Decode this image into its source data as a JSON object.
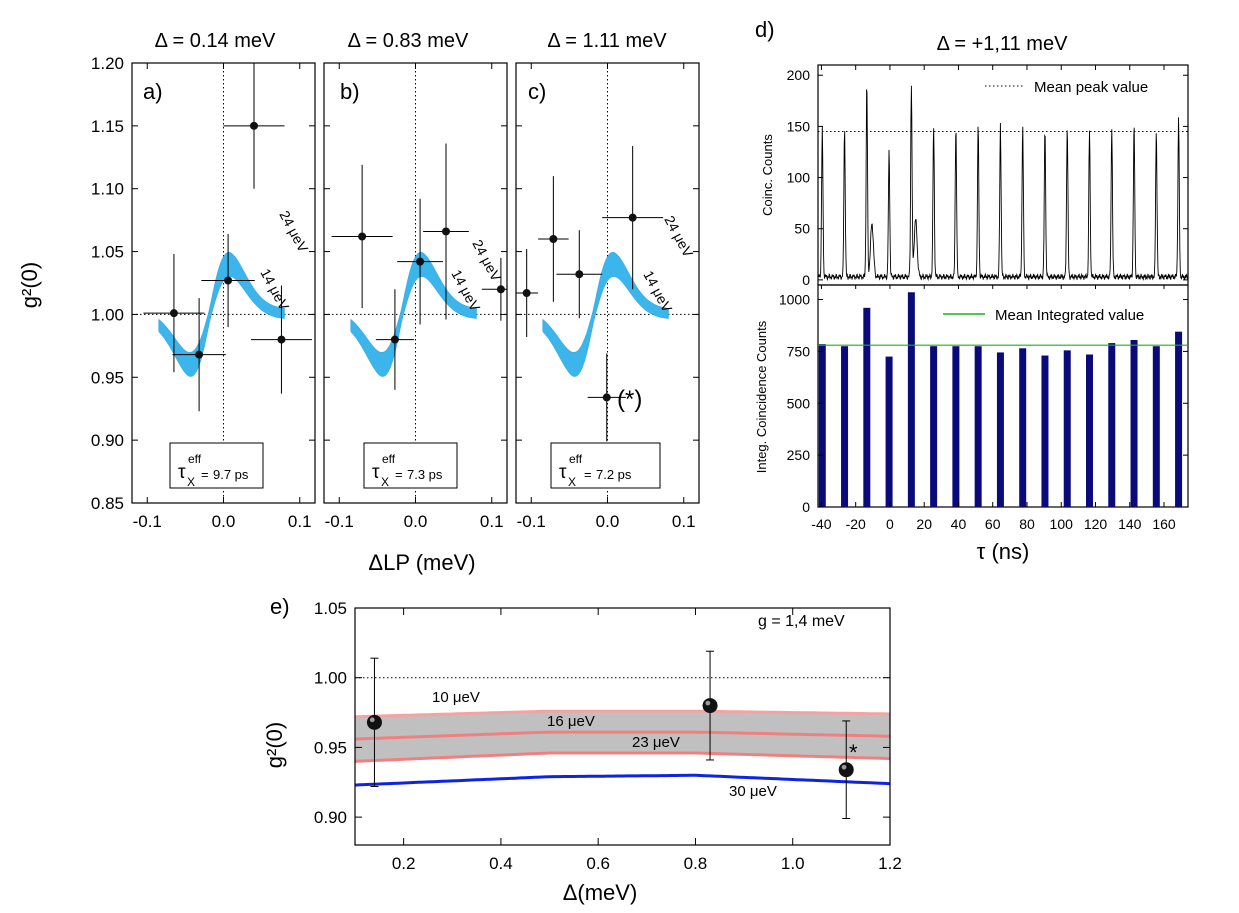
{
  "panels_abc": {
    "ylabel": "g²(0)",
    "xlabel": "ΔLP (meV)",
    "yticks": [
      "0.85",
      "0.90",
      "0.95",
      "1.00",
      "1.05",
      "1.10",
      "1.15",
      "1.20"
    ],
    "xticks": [
      "-0.1",
      "0.0",
      "0.1"
    ],
    "panels": [
      {
        "letter": "a)",
        "title": "Δ = 0.14 meV",
        "tau": "9.7 ps",
        "band_top": "24 μeV",
        "band_bottom": "14 μeV"
      },
      {
        "letter": "b)",
        "title": "Δ = 0.83 meV",
        "tau": "7.3 ps",
        "band_top": "24 μeV",
        "band_bottom": "14 μeV"
      },
      {
        "letter": "c)",
        "title": "Δ = 1.11 meV",
        "tau": "7.2 ps",
        "band_top": "24 μeV",
        "band_bottom": "14 μeV",
        "mark": "(*)"
      }
    ]
  },
  "panel_d": {
    "letter": "d)",
    "title": "Δ = +1,11 meV",
    "top_ylabel": "Coinc. Counts",
    "top_yticks": [
      "0",
      "50",
      "100",
      "150",
      "200"
    ],
    "top_legend": "Mean peak value",
    "bottom_ylabel": "Integ. Coincidence Counts",
    "bottom_yticks": [
      "0",
      "250",
      "500",
      "750",
      "1000"
    ],
    "bottom_legend": "Mean Integrated value",
    "xticks": [
      "-40",
      "-20",
      "0",
      "20",
      "40",
      "60",
      "80",
      "100",
      "120",
      "140",
      "160"
    ],
    "xlabel": "τ (ns)",
    "colors": {
      "bars": "#0a0a7a",
      "mean": "#18b418"
    }
  },
  "panel_e": {
    "letter": "e)",
    "ylabel": "g²(0)",
    "xlabel": "Δ(meV)",
    "annotation": "g = 1,4 meV",
    "yticks": [
      "0.90",
      "0.95",
      "1.00",
      "1.05"
    ],
    "xticks": [
      "0.2",
      "0.4",
      "0.6",
      "0.8",
      "1.0",
      "1.2"
    ],
    "curve_labels": [
      "10 μeV",
      "16 μeV",
      "23 μeV",
      "30 μeV"
    ],
    "star": "*"
  },
  "chart_data": [
    {
      "type": "scatter",
      "panel": "a",
      "title": "Δ = 0.14 meV",
      "xlabel": "ΔLP (meV)",
      "ylabel": "g²(0)",
      "xlim": [
        -0.12,
        0.12
      ],
      "ylim": [
        0.85,
        1.2
      ],
      "points": [
        {
          "x": -0.065,
          "y": 1.001,
          "xerr": 0.04,
          "yerr": 0.047
        },
        {
          "x": -0.032,
          "y": 0.968,
          "xerr": 0.035,
          "yerr": 0.045
        },
        {
          "x": 0.006,
          "y": 1.027,
          "xerr": 0.035,
          "yerr": 0.037
        },
        {
          "x": 0.04,
          "y": 1.15,
          "xerr": 0.04,
          "yerr": 0.05
        },
        {
          "x": 0.076,
          "y": 0.98,
          "xerr": 0.04,
          "yerr": 0.043
        }
      ],
      "band": {
        "offset": -0.018,
        "labels": [
          "24 μeV",
          "14 μeV"
        ]
      }
    },
    {
      "type": "scatter",
      "panel": "b",
      "title": "Δ = 0.83 meV",
      "xlabel": "ΔLP (meV)",
      "ylabel": "g²(0)",
      "xlim": [
        -0.12,
        0.12
      ],
      "ylim": [
        0.85,
        1.2
      ],
      "points": [
        {
          "x": -0.07,
          "y": 1.062,
          "xerr": 0.04,
          "yerr": 0.057
        },
        {
          "x": -0.027,
          "y": 0.98,
          "xerr": 0.025,
          "yerr": 0.04
        },
        {
          "x": 0.006,
          "y": 1.042,
          "xerr": 0.03,
          "yerr": 0.05
        },
        {
          "x": 0.04,
          "y": 1.066,
          "xerr": 0.03,
          "yerr": 0.07
        },
        {
          "x": 0.112,
          "y": 1.02,
          "xerr": 0.025,
          "yerr": 0.025
        }
      ],
      "band": {
        "offset": -0.018,
        "labels": [
          "24 μeV",
          "14 μeV"
        ]
      }
    },
    {
      "type": "scatter",
      "panel": "c",
      "title": "Δ = 1.11 meV",
      "xlabel": "ΔLP (meV)",
      "ylabel": "g²(0)",
      "xlim": [
        -0.12,
        0.12
      ],
      "ylim": [
        0.85,
        1.2
      ],
      "points": [
        {
          "x": -0.106,
          "y": 1.017,
          "xerr": 0.015,
          "yerr": 0.035
        },
        {
          "x": -0.071,
          "y": 1.06,
          "xerr": 0.02,
          "yerr": 0.05
        },
        {
          "x": -0.037,
          "y": 1.032,
          "xerr": 0.03,
          "yerr": 0.035
        },
        {
          "x": -0.001,
          "y": 0.934,
          "xerr": 0.025,
          "yerr": 0.035
        },
        {
          "x": 0.033,
          "y": 1.077,
          "xerr": 0.04,
          "yerr": 0.057
        }
      ],
      "band": {
        "offset": -0.018,
        "labels": [
          "24 μeV",
          "14 μeV"
        ]
      }
    },
    {
      "type": "line",
      "panel": "d-top",
      "title": "Δ = +1,11 meV",
      "ylabel": "Coinc. Counts",
      "xlim": [
        -42,
        174
      ],
      "ylim": [
        -5,
        210
      ],
      "peak_times": [
        -39.5,
        -26.5,
        -13.5,
        -0.5,
        12.5,
        25.5,
        38.5,
        51.5,
        64.5,
        77.5,
        90.5,
        103.5,
        116.5,
        129.5,
        142.5,
        155.5,
        168.5
      ],
      "peak_heights": [
        145,
        145,
        190,
        125,
        188,
        147,
        148,
        147,
        150,
        147,
        145,
        148,
        143,
        146,
        148,
        143,
        155
      ],
      "side_humps": [
        {
          "x": -10.5,
          "y": 62
        },
        {
          "x": 15,
          "y": 66
        }
      ],
      "mean_peak": 145,
      "legend": "Mean peak value"
    },
    {
      "type": "bar",
      "panel": "d-bottom",
      "ylabel": "Integ. Coincidence Counts",
      "xlabel": "τ (ns)",
      "xlim": [
        -42,
        174
      ],
      "ylim": [
        0,
        1070
      ],
      "x": [
        -39.5,
        -26.5,
        -13.5,
        -0.5,
        12.5,
        25.5,
        38.5,
        51.5,
        64.5,
        77.5,
        90.5,
        103.5,
        116.5,
        129.5,
        142.5,
        155.5,
        168.5
      ],
      "values": [
        785,
        775,
        960,
        725,
        1035,
        775,
        775,
        775,
        745,
        765,
        730,
        755,
        735,
        790,
        805,
        775,
        845
      ],
      "mean": 780,
      "legend": "Mean Integrated value"
    },
    {
      "type": "line",
      "panel": "e",
      "xlabel": "Δ(meV)",
      "ylabel": "g²(0)",
      "xlim": [
        0.1,
        1.2
      ],
      "ylim": [
        0.88,
        1.05
      ],
      "series": [
        {
          "name": "10 μeV",
          "x": [
            0.1,
            0.5,
            0.8,
            1.2
          ],
          "values": [
            0.972,
            0.976,
            0.976,
            0.974
          ]
        },
        {
          "name": "16 μeV",
          "x": [
            0.1,
            0.5,
            0.8,
            1.2
          ],
          "values": [
            0.956,
            0.961,
            0.961,
            0.958
          ]
        },
        {
          "name": "23 μeV",
          "x": [
            0.1,
            0.5,
            0.8,
            1.2
          ],
          "values": [
            0.94,
            0.946,
            0.946,
            0.942
          ]
        },
        {
          "name": "30 μeV",
          "x": [
            0.1,
            0.5,
            0.8,
            1.2
          ],
          "values": [
            0.923,
            0.929,
            0.93,
            0.924
          ]
        }
      ],
      "points": [
        {
          "x": 0.14,
          "y": 0.968,
          "yerr": 0.046
        },
        {
          "x": 0.83,
          "y": 0.98,
          "yerr": 0.039
        },
        {
          "x": 1.11,
          "y": 0.934,
          "yerr": 0.035
        }
      ],
      "reference_y": 1.0
    }
  ]
}
